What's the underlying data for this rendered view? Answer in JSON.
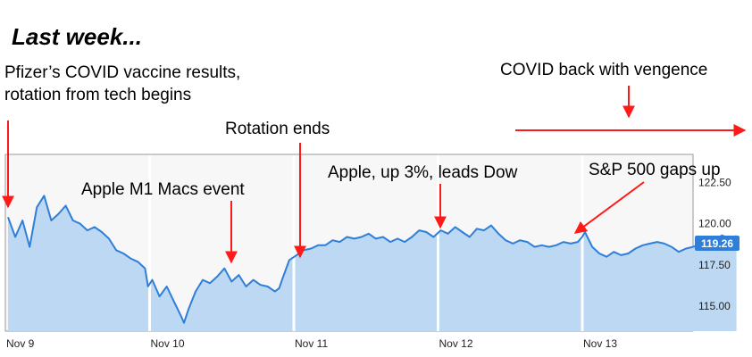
{
  "heading": "Last week...",
  "annotations": {
    "pfizer_line1": "Pfizer’s COVID vaccine results,",
    "pfizer_line2": "rotation from tech begins",
    "covid": "COVID back with vengence",
    "rotation_ends": "Rotation ends",
    "apple_event": "Apple M1 Macs event",
    "apple_up": "Apple, up 3%, leads Dow",
    "sp500": "S&P 500 gaps up"
  },
  "colors": {
    "annotation_arrow": "#ff1a1a",
    "line": "#2f7fd8",
    "area": "#bcd8f2",
    "plot_bg": "#f7f7f7",
    "price_badge": "#2f7fd8"
  },
  "chart_data": {
    "type": "area",
    "title": "",
    "xlabel": "",
    "ylabel": "",
    "x_ticks": [
      "Nov 9",
      "Nov 10",
      "Nov 11",
      "Nov 12",
      "Nov 13"
    ],
    "y_ticks": [
      "115.00",
      "117.50",
      "120.00",
      "122.50"
    ],
    "ylim": [
      113.5,
      124.2
    ],
    "grid": false,
    "y_axis_side": "right",
    "last_price": "119.26",
    "series": [
      {
        "points": [
          [
            0.0,
            120.4
          ],
          [
            0.05,
            119.2
          ],
          [
            0.1,
            120.2
          ],
          [
            0.15,
            118.6
          ],
          [
            0.2,
            121.0
          ],
          [
            0.25,
            121.7
          ],
          [
            0.3,
            120.2
          ],
          [
            0.35,
            120.6
          ],
          [
            0.4,
            121.1
          ],
          [
            0.45,
            120.2
          ],
          [
            0.5,
            120.0
          ],
          [
            0.55,
            119.6
          ],
          [
            0.6,
            119.8
          ],
          [
            0.65,
            119.5
          ],
          [
            0.7,
            119.1
          ],
          [
            0.75,
            118.4
          ],
          [
            0.8,
            118.2
          ],
          [
            0.85,
            117.9
          ],
          [
            0.9,
            117.7
          ],
          [
            0.95,
            117.3
          ],
          [
            0.97,
            116.2
          ],
          [
            1.0,
            116.6
          ],
          [
            1.05,
            115.6
          ],
          [
            1.1,
            116.2
          ],
          [
            1.15,
            115.3
          ],
          [
            1.2,
            114.4
          ],
          [
            1.22,
            114.0
          ],
          [
            1.25,
            114.8
          ],
          [
            1.3,
            115.9
          ],
          [
            1.35,
            116.6
          ],
          [
            1.4,
            116.4
          ],
          [
            1.45,
            116.8
          ],
          [
            1.5,
            117.3
          ],
          [
            1.55,
            116.5
          ],
          [
            1.6,
            116.9
          ],
          [
            1.65,
            116.2
          ],
          [
            1.7,
            116.6
          ],
          [
            1.75,
            116.3
          ],
          [
            1.8,
            116.2
          ],
          [
            1.85,
            115.9
          ],
          [
            1.88,
            116.1
          ],
          [
            1.9,
            116.6
          ],
          [
            1.95,
            117.8
          ],
          [
            2.0,
            118.1
          ],
          [
            2.05,
            118.4
          ],
          [
            2.1,
            118.5
          ],
          [
            2.15,
            118.7
          ],
          [
            2.2,
            118.7
          ],
          [
            2.25,
            119.0
          ],
          [
            2.3,
            118.9
          ],
          [
            2.35,
            119.2
          ],
          [
            2.4,
            119.1
          ],
          [
            2.45,
            119.2
          ],
          [
            2.5,
            119.4
          ],
          [
            2.55,
            119.1
          ],
          [
            2.6,
            119.2
          ],
          [
            2.65,
            118.9
          ],
          [
            2.7,
            119.1
          ],
          [
            2.75,
            118.9
          ],
          [
            2.8,
            119.2
          ],
          [
            2.85,
            119.6
          ],
          [
            2.9,
            119.5
          ],
          [
            2.95,
            119.2
          ],
          [
            3.0,
            119.6
          ],
          [
            3.05,
            119.4
          ],
          [
            3.1,
            119.8
          ],
          [
            3.15,
            119.5
          ],
          [
            3.2,
            119.2
          ],
          [
            3.25,
            119.7
          ],
          [
            3.3,
            119.6
          ],
          [
            3.35,
            119.9
          ],
          [
            3.4,
            119.4
          ],
          [
            3.45,
            119.0
          ],
          [
            3.5,
            118.8
          ],
          [
            3.55,
            119.0
          ],
          [
            3.6,
            118.9
          ],
          [
            3.65,
            118.6
          ],
          [
            3.7,
            118.7
          ],
          [
            3.75,
            118.6
          ],
          [
            3.8,
            118.7
          ],
          [
            3.85,
            118.9
          ],
          [
            3.9,
            118.8
          ],
          [
            3.95,
            118.9
          ],
          [
            3.98,
            119.2
          ],
          [
            4.0,
            119.5
          ],
          [
            4.05,
            118.6
          ],
          [
            4.1,
            118.2
          ],
          [
            4.15,
            118.0
          ],
          [
            4.2,
            118.3
          ],
          [
            4.25,
            118.1
          ],
          [
            4.3,
            118.2
          ],
          [
            4.35,
            118.5
          ],
          [
            4.4,
            118.7
          ],
          [
            4.45,
            118.8
          ],
          [
            4.5,
            118.9
          ],
          [
            4.55,
            118.8
          ],
          [
            4.6,
            118.6
          ],
          [
            4.65,
            118.3
          ],
          [
            4.7,
            118.5
          ],
          [
            4.75,
            118.6
          ],
          [
            4.8,
            118.8
          ],
          [
            4.85,
            118.8
          ],
          [
            4.9,
            119.0
          ],
          [
            4.95,
            119.3
          ],
          [
            5.0,
            119.1
          ],
          [
            5.05,
            119.26
          ]
        ]
      }
    ]
  }
}
